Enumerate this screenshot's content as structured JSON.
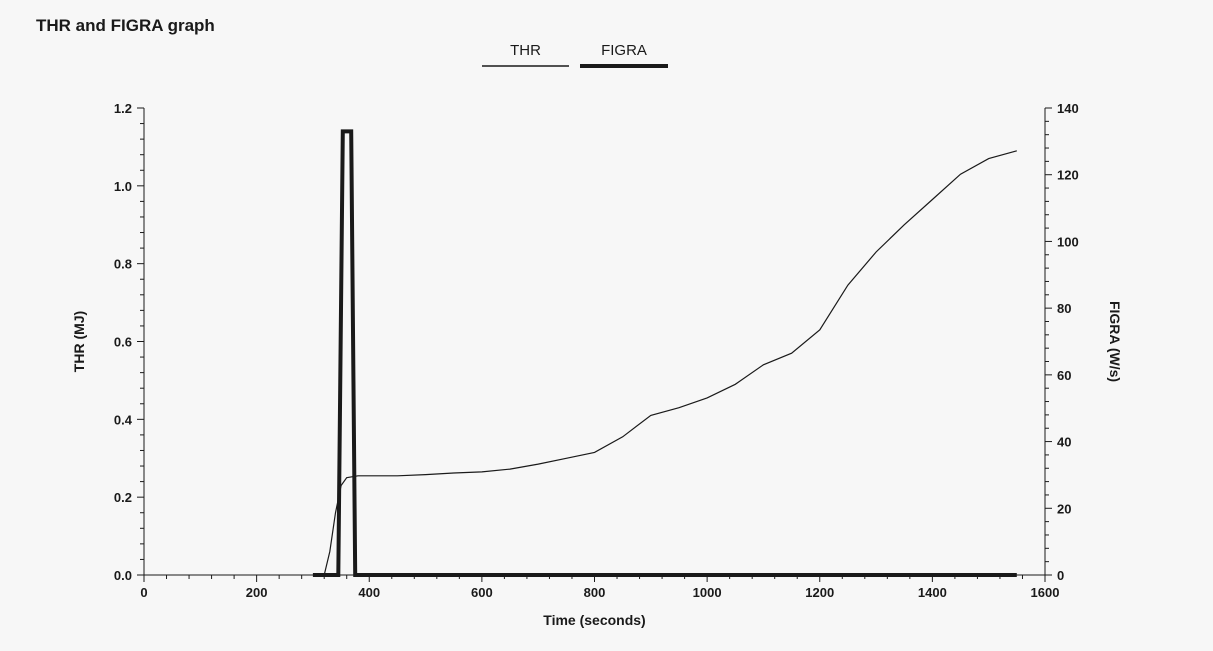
{
  "title": "THR and FIGRA graph",
  "chart_data": {
    "type": "line",
    "xlabel": "Time (seconds)",
    "ylabel_left": "THR (MJ)",
    "ylabel_right": "FIGRA (W/s)",
    "xlim": [
      0,
      1600
    ],
    "ylim_left": [
      0,
      1.2
    ],
    "ylim_right": [
      0,
      140
    ],
    "x_ticks": [
      0,
      200,
      400,
      600,
      800,
      1000,
      1200,
      1400,
      1600
    ],
    "y_left_ticks": [
      0.0,
      0.2,
      0.4,
      0.6,
      0.8,
      1.0,
      1.2
    ],
    "y_left_tick_labels": [
      "0.0",
      "0.2",
      "0.4",
      "0.6",
      "0.8",
      "1.0",
      "1.2"
    ],
    "y_right_ticks": [
      0,
      20,
      40,
      60,
      80,
      100,
      120,
      140
    ],
    "grid": false,
    "legend_position": "top-center",
    "series": [
      {
        "name": "THR",
        "axis": "left",
        "color": "#1a1a1a",
        "x": [
          300,
          320,
          330,
          340,
          350,
          360,
          380,
          400,
          450,
          500,
          550,
          600,
          650,
          700,
          750,
          800,
          850,
          900,
          950,
          1000,
          1050,
          1100,
          1150,
          1200,
          1250,
          1300,
          1350,
          1400,
          1450,
          1500,
          1550
        ],
        "values": [
          0.0,
          0.0,
          0.06,
          0.16,
          0.23,
          0.25,
          0.255,
          0.255,
          0.255,
          0.258,
          0.262,
          0.265,
          0.272,
          0.285,
          0.3,
          0.315,
          0.355,
          0.41,
          0.43,
          0.455,
          0.49,
          0.54,
          0.57,
          0.63,
          0.745,
          0.83,
          0.9,
          0.965,
          1.03,
          1.07,
          1.09
        ]
      },
      {
        "name": "FIGRA",
        "axis": "right",
        "color": "#1a1a1a",
        "x": [
          300,
          345,
          353,
          356,
          362,
          368,
          375,
          1550
        ],
        "values": [
          0,
          0,
          133,
          133,
          133,
          133,
          0,
          0
        ]
      }
    ]
  }
}
